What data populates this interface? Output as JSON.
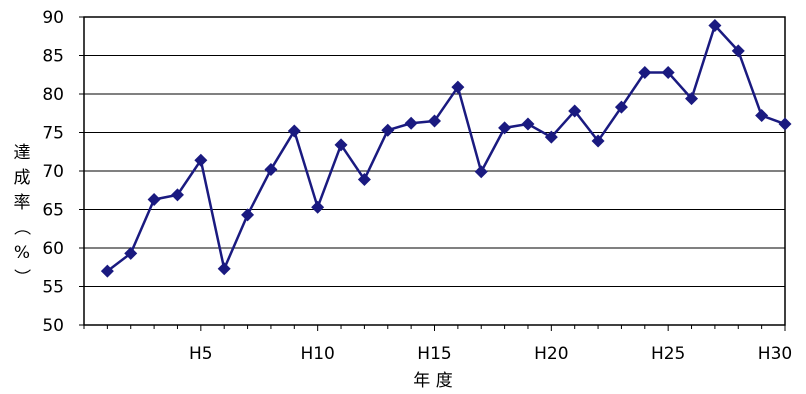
{
  "chart_data": {
    "type": "line",
    "xlabel": "年 度",
    "ylabel": "達成率（%）",
    "ylim": [
      50,
      90
    ],
    "yticks": [
      50,
      55,
      60,
      65,
      70,
      75,
      80,
      85,
      90
    ],
    "xticks": [
      {
        "x": 5,
        "label": "H5"
      },
      {
        "x": 10,
        "label": "H10"
      },
      {
        "x": 15,
        "label": "H15"
      },
      {
        "x": 20,
        "label": "H20"
      },
      {
        "x": 25,
        "label": "H25"
      },
      {
        "x": 30,
        "label": "H30"
      }
    ],
    "xlim": [
      0,
      30
    ],
    "grid": "horizontal",
    "series": [
      {
        "color": "#1a1a80",
        "marker": "diamond",
        "x": [
          1,
          2,
          3,
          4,
          5,
          6,
          7,
          8,
          9,
          10,
          11,
          12,
          13,
          14,
          15,
          16,
          17,
          18,
          19,
          20,
          21,
          22,
          23,
          24,
          25,
          26,
          27,
          28,
          29,
          30
        ],
        "values": [
          57.0,
          59.3,
          66.3,
          66.9,
          71.4,
          57.3,
          64.3,
          70.2,
          75.2,
          65.3,
          73.4,
          68.9,
          75.3,
          76.2,
          76.5,
          80.9,
          69.9,
          75.6,
          76.1,
          74.4,
          77.8,
          73.9,
          78.3,
          82.8,
          82.8,
          79.4,
          88.9,
          85.6,
          77.2,
          76.1
        ]
      }
    ]
  }
}
